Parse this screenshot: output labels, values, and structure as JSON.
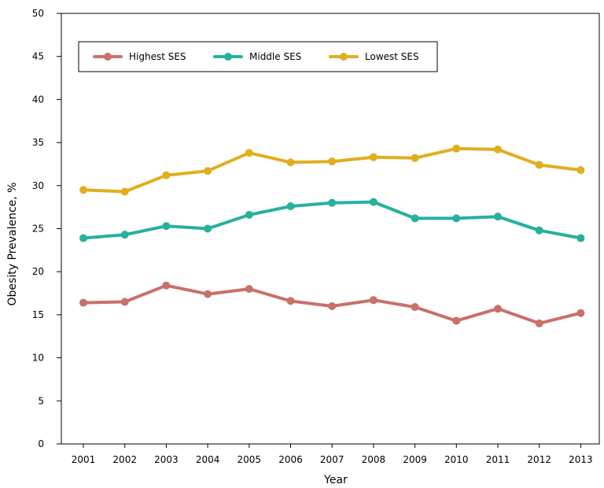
{
  "chart_data": {
    "type": "line",
    "xlabel": "Year",
    "ylabel": "Obesity Prevalence, %",
    "ylim": [
      0,
      50
    ],
    "y_ticks": [
      0,
      5,
      10,
      15,
      20,
      25,
      30,
      35,
      40,
      45,
      50
    ],
    "categories": [
      "2001",
      "2002",
      "2003",
      "2004",
      "2005",
      "2006",
      "2007",
      "2008",
      "2009",
      "2010",
      "2011",
      "2012",
      "2013"
    ],
    "grid": false,
    "legend_position": "top-left, inside, horizontal",
    "series": [
      {
        "name": "Highest SES",
        "color": "#c8706a",
        "values": [
          16.4,
          16.5,
          18.4,
          17.4,
          18.0,
          16.6,
          16.0,
          16.7,
          15.9,
          14.3,
          15.7,
          14.0,
          15.2
        ]
      },
      {
        "name": "Middle SES",
        "color": "#26b09e",
        "values": [
          23.9,
          24.3,
          25.3,
          25.0,
          26.6,
          27.6,
          28.0,
          28.1,
          26.2,
          26.2,
          26.4,
          24.8,
          23.9
        ]
      },
      {
        "name": "Lowest SES",
        "color": "#e0ae1e",
        "values": [
          29.5,
          29.3,
          31.2,
          31.7,
          33.8,
          32.7,
          32.8,
          33.3,
          33.2,
          34.3,
          34.2,
          32.4,
          31.8
        ]
      }
    ]
  }
}
